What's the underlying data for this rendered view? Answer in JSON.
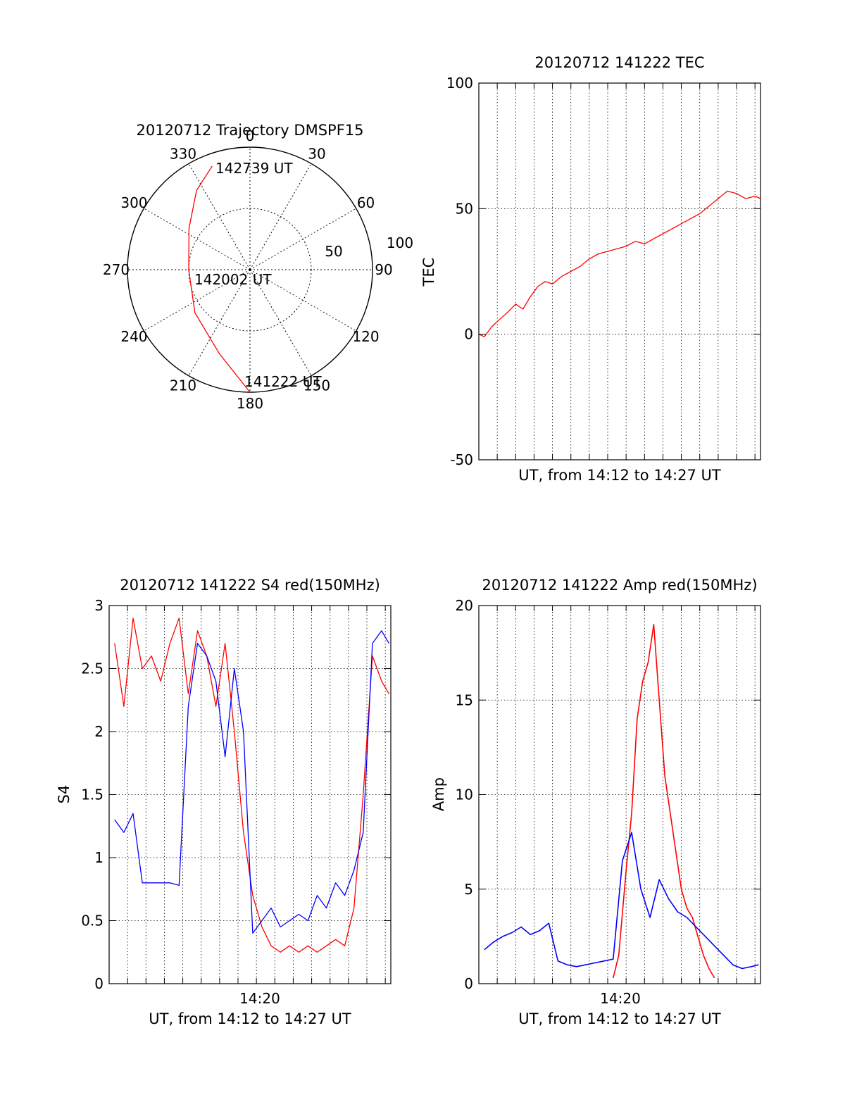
{
  "chart_data": [
    {
      "type": "polar",
      "title": "20120712 Trajectory DMSPF15",
      "angle_labels": [
        "0",
        "30",
        "60",
        "90",
        "120",
        "150",
        "180",
        "210",
        "240",
        "270",
        "300",
        "330"
      ],
      "angles_deg": [
        0,
        30,
        60,
        90,
        120,
        150,
        180,
        210,
        240,
        270,
        300,
        330
      ],
      "radial_labels": [
        "50",
        "100"
      ],
      "radial_values": [
        50,
        100
      ],
      "grid": true,
      "series": [
        {
          "color": "#ff0000",
          "points": [
            {
              "az": 180,
              "r": 100
            },
            {
              "az": 200,
              "r": 73
            },
            {
              "az": 232,
              "r": 57
            },
            {
              "az": 270,
              "r": 50
            },
            {
              "az": 304,
              "r": 60
            },
            {
              "az": 326,
              "r": 78
            },
            {
              "az": 340,
              "r": 90
            }
          ]
        }
      ],
      "annotations": [
        {
          "text": "142739 UT",
          "az": 340,
          "r": 90
        },
        {
          "text": "142002 UT",
          "az": 270,
          "r": 50
        },
        {
          "text": "141222 UT",
          "az": 180,
          "r": 100
        }
      ]
    },
    {
      "type": "line",
      "title": "20120712 141222 TEC",
      "xlabel": "UT, from 14:12 to 14:27 UT",
      "ylabel": "TEC",
      "xlim": [
        0,
        15.3
      ],
      "ylim": [
        -50,
        100
      ],
      "yticks": [
        -50,
        0,
        50,
        100
      ],
      "grid": true,
      "series": [
        {
          "color": "#ff0000",
          "x": [
            0,
            0.3,
            0.7,
            1.0,
            1.3,
            1.6,
            2.0,
            2.4,
            2.8,
            3.2,
            3.6,
            4.0,
            4.5,
            5.0,
            5.5,
            6.0,
            6.5,
            7.0,
            7.5,
            8.0,
            8.5,
            9.0,
            9.5,
            10.0,
            10.5,
            11.0,
            11.5,
            12.0,
            12.5,
            13.0,
            13.5,
            14.0,
            14.5,
            15.0,
            15.3
          ],
          "y": [
            0,
            -1,
            3,
            5,
            7,
            9,
            12,
            10,
            15,
            19,
            21,
            20,
            23,
            25,
            27,
            30,
            32,
            33,
            34,
            35,
            37,
            36,
            38,
            40,
            42,
            44,
            46,
            48,
            51,
            54,
            57,
            56,
            54,
            55,
            54
          ]
        }
      ]
    },
    {
      "type": "line",
      "title": "20120712 141222 S4 red(150MHz)",
      "xlabel": "UT, from 14:12 to 14:27 UT",
      "ylabel": "S4",
      "xtick_label": "14:20",
      "xlim": [
        0,
        15.3
      ],
      "ylim": [
        0,
        3
      ],
      "yticks": [
        0,
        0.5,
        1,
        1.5,
        2,
        2.5,
        3
      ],
      "ytick_labels": [
        "0",
        "0.5",
        "1",
        "1.5",
        "2",
        "2.5",
        "3"
      ],
      "grid": true,
      "series": [
        {
          "color": "#ff0000",
          "x": [
            0.3,
            0.8,
            1.3,
            1.8,
            2.3,
            2.8,
            3.3,
            3.8,
            4.3,
            4.8,
            5.3,
            5.8,
            6.3,
            6.8,
            7.3,
            7.8,
            8.3,
            8.8,
            9.3,
            9.8,
            10.3,
            10.8,
            11.3,
            11.8,
            12.3,
            12.8,
            13.3,
            13.8,
            14.3,
            14.8,
            15.2
          ],
          "y": [
            2.7,
            2.2,
            2.9,
            2.5,
            2.6,
            2.4,
            2.7,
            2.9,
            2.3,
            2.8,
            2.6,
            2.2,
            2.7,
            2.0,
            1.2,
            0.7,
            0.45,
            0.3,
            0.25,
            0.3,
            0.25,
            0.3,
            0.25,
            0.3,
            0.35,
            0.3,
            0.6,
            1.5,
            2.6,
            2.4,
            2.3
          ]
        },
        {
          "color": "#0000ff",
          "x": [
            0.3,
            0.8,
            1.3,
            1.8,
            2.3,
            2.8,
            3.3,
            3.8,
            4.3,
            4.8,
            5.3,
            5.8,
            6.3,
            6.8,
            7.3,
            7.8,
            8.3,
            8.8,
            9.3,
            9.8,
            10.3,
            10.8,
            11.3,
            11.8,
            12.3,
            12.8,
            13.3,
            13.8,
            14.3,
            14.8,
            15.2
          ],
          "y": [
            1.3,
            1.2,
            1.35,
            0.8,
            0.8,
            0.8,
            0.8,
            0.78,
            2.2,
            2.7,
            2.6,
            2.4,
            1.8,
            2.5,
            2.0,
            0.4,
            0.5,
            0.6,
            0.45,
            0.5,
            0.55,
            0.5,
            0.7,
            0.6,
            0.8,
            0.7,
            0.9,
            1.2,
            2.7,
            2.8,
            2.7
          ]
        }
      ]
    },
    {
      "type": "line",
      "title": "20120712 141222 Amp red(150MHz)",
      "xlabel": "UT, from 14:12 to 14:27 UT",
      "ylabel": "Amp",
      "xtick_label": "14:20",
      "xlim": [
        0,
        15.3
      ],
      "ylim": [
        0,
        20
      ],
      "yticks": [
        0,
        5,
        10,
        15,
        20
      ],
      "grid": true,
      "series": [
        {
          "color": "#ff0000",
          "x": [
            7.3,
            7.6,
            8.0,
            8.3,
            8.6,
            8.9,
            9.2,
            9.5,
            9.8,
            10.1,
            10.4,
            10.7,
            11.0,
            11.3,
            11.6,
            11.9,
            12.2,
            12.5,
            12.8
          ],
          "y": [
            0.3,
            1.5,
            6,
            9,
            14,
            16,
            17,
            19,
            15,
            11,
            9,
            7,
            5,
            4,
            3.5,
            2.5,
            1.5,
            0.8,
            0.3
          ]
        },
        {
          "color": "#0000ff",
          "x": [
            0.3,
            0.8,
            1.3,
            1.8,
            2.3,
            2.8,
            3.3,
            3.8,
            4.3,
            4.8,
            5.3,
            5.8,
            6.3,
            6.8,
            7.3,
            7.8,
            8.3,
            8.8,
            9.3,
            9.8,
            10.3,
            10.8,
            11.3,
            11.8,
            12.3,
            12.8,
            13.3,
            13.8,
            14.3,
            14.8,
            15.2
          ],
          "y": [
            1.8,
            2.2,
            2.5,
            2.7,
            3.0,
            2.6,
            2.8,
            3.2,
            1.2,
            1.0,
            0.9,
            1.0,
            1.1,
            1.2,
            1.3,
            6.5,
            8.0,
            5.0,
            3.5,
            5.5,
            4.5,
            3.8,
            3.5,
            3.0,
            2.5,
            2.0,
            1.5,
            1.0,
            0.8,
            0.9,
            1.0
          ]
        }
      ]
    }
  ]
}
